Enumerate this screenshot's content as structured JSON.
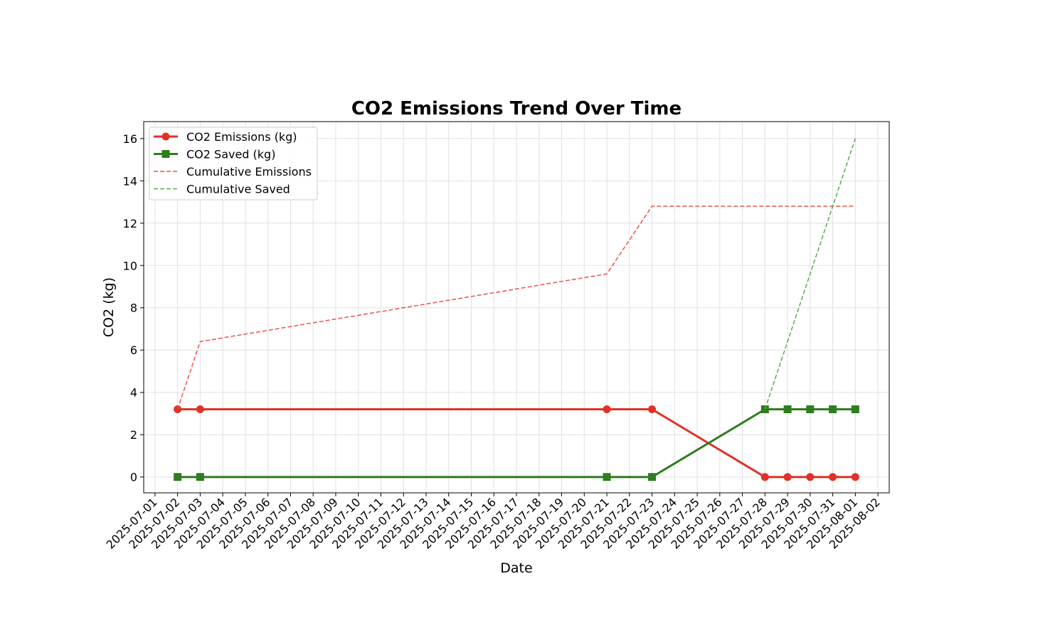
{
  "chart_data": {
    "type": "line",
    "title": "CO2 Emissions Trend Over Time",
    "xlabel": "Date",
    "ylabel": "CO2 (kg)",
    "xlim": [
      "2025-07-01",
      "2025-08-02"
    ],
    "ylim": [
      -0.75,
      16.8
    ],
    "yticks": [
      0,
      2,
      4,
      6,
      8,
      10,
      12,
      14,
      16
    ],
    "xticks": [
      "2025-07-01",
      "2025-07-02",
      "2025-07-03",
      "2025-07-04",
      "2025-07-05",
      "2025-07-06",
      "2025-07-07",
      "2025-07-08",
      "2025-07-09",
      "2025-07-10",
      "2025-07-11",
      "2025-07-12",
      "2025-07-13",
      "2025-07-14",
      "2025-07-15",
      "2025-07-16",
      "2025-07-17",
      "2025-07-18",
      "2025-07-19",
      "2025-07-20",
      "2025-07-21",
      "2025-07-22",
      "2025-07-23",
      "2025-07-24",
      "2025-07-25",
      "2025-07-26",
      "2025-07-27",
      "2025-07-28",
      "2025-07-29",
      "2025-07-30",
      "2025-07-31",
      "2025-08-01",
      "2025-08-02"
    ],
    "grid": true,
    "legend_position": "top-left",
    "series": [
      {
        "name": "CO2 Emissions (kg)",
        "color": "#e03127",
        "style": "solid",
        "marker": "circle",
        "points": [
          {
            "x": "2025-07-02",
            "y": 3.2
          },
          {
            "x": "2025-07-03",
            "y": 3.2
          },
          {
            "x": "2025-07-21",
            "y": 3.2
          },
          {
            "x": "2025-07-23",
            "y": 3.2
          },
          {
            "x": "2025-07-28",
            "y": 0
          },
          {
            "x": "2025-07-29",
            "y": 0
          },
          {
            "x": "2025-07-30",
            "y": 0
          },
          {
            "x": "2025-07-31",
            "y": 0
          },
          {
            "x": "2025-08-01",
            "y": 0
          }
        ]
      },
      {
        "name": "CO2 Saved (kg)",
        "color": "#2e7d1f",
        "style": "solid",
        "marker": "square",
        "points": [
          {
            "x": "2025-07-02",
            "y": 0
          },
          {
            "x": "2025-07-03",
            "y": 0
          },
          {
            "x": "2025-07-21",
            "y": 0
          },
          {
            "x": "2025-07-23",
            "y": 0
          },
          {
            "x": "2025-07-28",
            "y": 3.2
          },
          {
            "x": "2025-07-29",
            "y": 3.2
          },
          {
            "x": "2025-07-30",
            "y": 3.2
          },
          {
            "x": "2025-07-31",
            "y": 3.2
          },
          {
            "x": "2025-08-01",
            "y": 3.2
          }
        ]
      },
      {
        "name": "Cumulative Emissions",
        "color": "#e8544a",
        "style": "dashed",
        "marker": "none",
        "points": [
          {
            "x": "2025-07-02",
            "y": 3.2
          },
          {
            "x": "2025-07-03",
            "y": 6.4
          },
          {
            "x": "2025-07-21",
            "y": 9.6
          },
          {
            "x": "2025-07-23",
            "y": 12.8
          },
          {
            "x": "2025-07-28",
            "y": 12.8
          },
          {
            "x": "2025-07-29",
            "y": 12.8
          },
          {
            "x": "2025-07-30",
            "y": 12.8
          },
          {
            "x": "2025-07-31",
            "y": 12.8
          },
          {
            "x": "2025-08-01",
            "y": 12.8
          }
        ]
      },
      {
        "name": "Cumulative Saved",
        "color": "#5aab4e",
        "style": "dashed",
        "marker": "none",
        "points": [
          {
            "x": "2025-07-28",
            "y": 3.2
          },
          {
            "x": "2025-07-29",
            "y": 6.4
          },
          {
            "x": "2025-07-30",
            "y": 9.6
          },
          {
            "x": "2025-07-31",
            "y": 12.8
          },
          {
            "x": "2025-08-01",
            "y": 16.0
          }
        ]
      }
    ]
  }
}
